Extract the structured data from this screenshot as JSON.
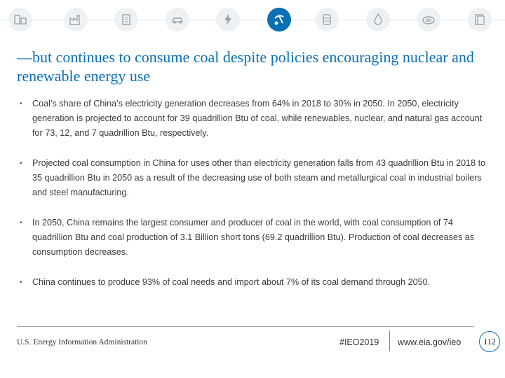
{
  "header": {
    "icons": [
      {
        "name": "industrial-icon",
        "active": false
      },
      {
        "name": "factory-icon",
        "active": false
      },
      {
        "name": "building-icon",
        "active": false
      },
      {
        "name": "car-icon",
        "active": false
      },
      {
        "name": "electricity-icon",
        "active": false
      },
      {
        "name": "coal-mining-icon",
        "active": true
      },
      {
        "name": "oil-barrel-icon",
        "active": false
      },
      {
        "name": "natural-gas-flame-icon",
        "active": false
      },
      {
        "name": "co2-icon",
        "active": false
      },
      {
        "name": "document-icon",
        "active": false
      }
    ],
    "accent_color": "#0a6fb5"
  },
  "title": "—but continues to consume coal despite policies encouraging nuclear and renewable energy use",
  "bullets": [
    "Coal’s share of China’s electricity generation decreases from 64% in 2018 to 30% in 2050. In 2050, electricity generation is projected to account for 39 quadrillion Btu of coal, while renewables, nuclear, and natural gas account for 73, 12, and 7 quadrillion Btu, respectively.",
    "Projected coal consumption in China for uses other than electricity generation falls from 43 quadrillion Btu in 2018 to 35 quadrillion Btu in 2050 as a result of the decreasing use of both steam and metallurgical coal in industrial boilers and steel manufacturing.",
    "In 2050, China remains the largest consumer and producer of coal in the world, with coal consumption of 74 quadrillion Btu and coal production of 3.1 Billion short tons (69.2 quadrillion Btu). Production of coal decreases as consumption decreases.",
    "China continues to produce 93% of coal needs and import about 7% of its coal demand through 2050."
  ],
  "footer": {
    "org": "U.S. Energy Information Administration",
    "hashtag": "#IEO2019",
    "url": "www.eia.gov/ieo",
    "page": "112"
  }
}
